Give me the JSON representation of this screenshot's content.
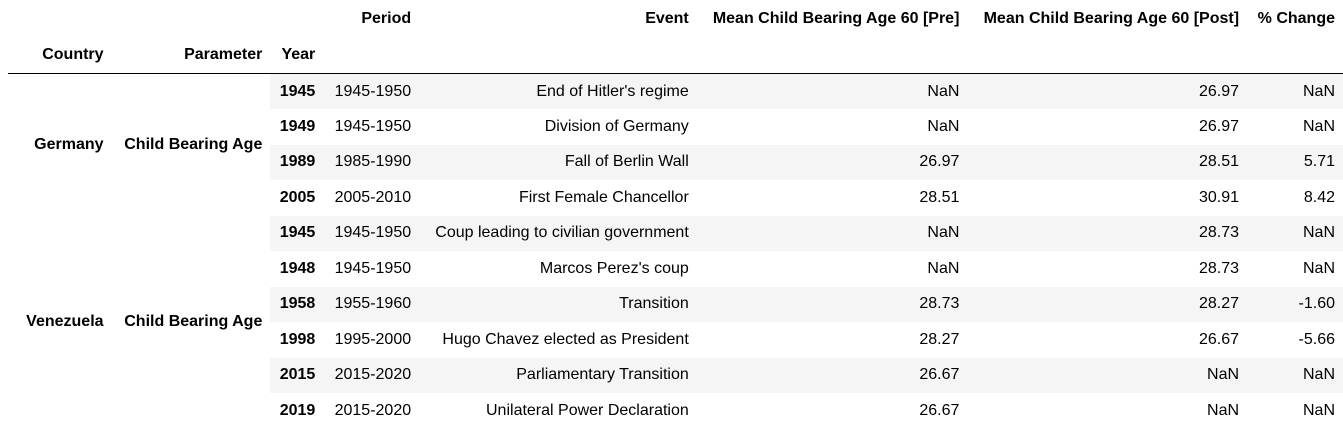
{
  "table": {
    "header_row1": {
      "period": "Period",
      "event": "Event",
      "pre": "Mean Child Bearing Age 60 [Pre]",
      "post": "Mean Child Bearing Age 60 [Post]",
      "change": "% Change"
    },
    "header_row2": {
      "country": "Country",
      "parameter": "Parameter",
      "year": "Year"
    },
    "groups": [
      {
        "country": "Germany",
        "parameter": "Child Bearing Age"
      },
      {
        "country": "Venezuela",
        "parameter": "Child Bearing Age"
      }
    ],
    "rows": [
      {
        "year": "1945",
        "period": "1945-1950",
        "event": "End of Hitler's regime",
        "pre": "NaN",
        "post": "26.97",
        "change": "NaN"
      },
      {
        "year": "1949",
        "period": "1945-1950",
        "event": "Division of Germany",
        "pre": "NaN",
        "post": "26.97",
        "change": "NaN"
      },
      {
        "year": "1989",
        "period": "1985-1990",
        "event": "Fall of Berlin Wall",
        "pre": "26.97",
        "post": "28.51",
        "change": "5.71"
      },
      {
        "year": "2005",
        "period": "2005-2010",
        "event": "First Female Chancellor",
        "pre": "28.51",
        "post": "30.91",
        "change": "8.42"
      },
      {
        "year": "1945",
        "period": "1945-1950",
        "event": "Coup leading to civilian government",
        "pre": "NaN",
        "post": "28.73",
        "change": "NaN"
      },
      {
        "year": "1948",
        "period": "1945-1950",
        "event": "Marcos Perez's coup",
        "pre": "NaN",
        "post": "28.73",
        "change": "NaN"
      },
      {
        "year": "1958",
        "period": "1955-1960",
        "event": "Transition",
        "pre": "28.73",
        "post": "28.27",
        "change": "-1.60"
      },
      {
        "year": "1998",
        "period": "1995-2000",
        "event": "Hugo Chavez elected as President",
        "pre": "28.27",
        "post": "26.67",
        "change": "-5.66"
      },
      {
        "year": "2015",
        "period": "2015-2020",
        "event": "Parliamentary Transition",
        "pre": "26.67",
        "post": "NaN",
        "change": "NaN"
      },
      {
        "year": "2019",
        "period": "2015-2020",
        "event": "Unilateral Power Declaration",
        "pre": "26.67",
        "post": "NaN",
        "change": "NaN"
      }
    ]
  }
}
